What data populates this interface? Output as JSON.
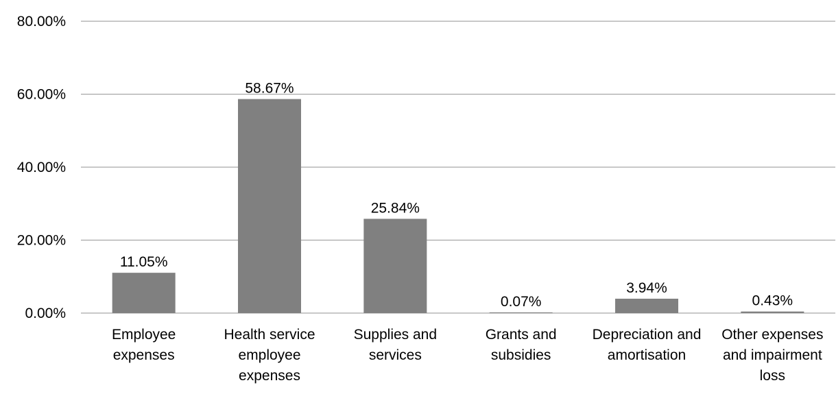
{
  "colors": {
    "bar": "#808080",
    "grid": "#a6a6a6",
    "text": "#000000",
    "background": "#ffffff"
  },
  "chart_data": {
    "type": "bar",
    "title": "",
    "xlabel": "",
    "ylabel": "",
    "ylim": [
      0,
      80
    ],
    "y_ticks": [
      0,
      20,
      40,
      60,
      80
    ],
    "y_tick_labels": [
      "0.00%",
      "20.00%",
      "40.00%",
      "60.00%",
      "80.00%"
    ],
    "grid": true,
    "legend": "none",
    "categories": [
      "Employee expenses",
      "Health service employee expenses",
      "Supplies and services",
      "Grants and subsidies",
      "Depreciation and amortisation",
      "Other expenses and impairment loss"
    ],
    "values": [
      11.05,
      58.67,
      25.84,
      0.07,
      3.94,
      0.43
    ],
    "data_labels": [
      "11.05%",
      "58.67%",
      "25.84%",
      "0.07%",
      "3.94%",
      "0.43%"
    ]
  }
}
